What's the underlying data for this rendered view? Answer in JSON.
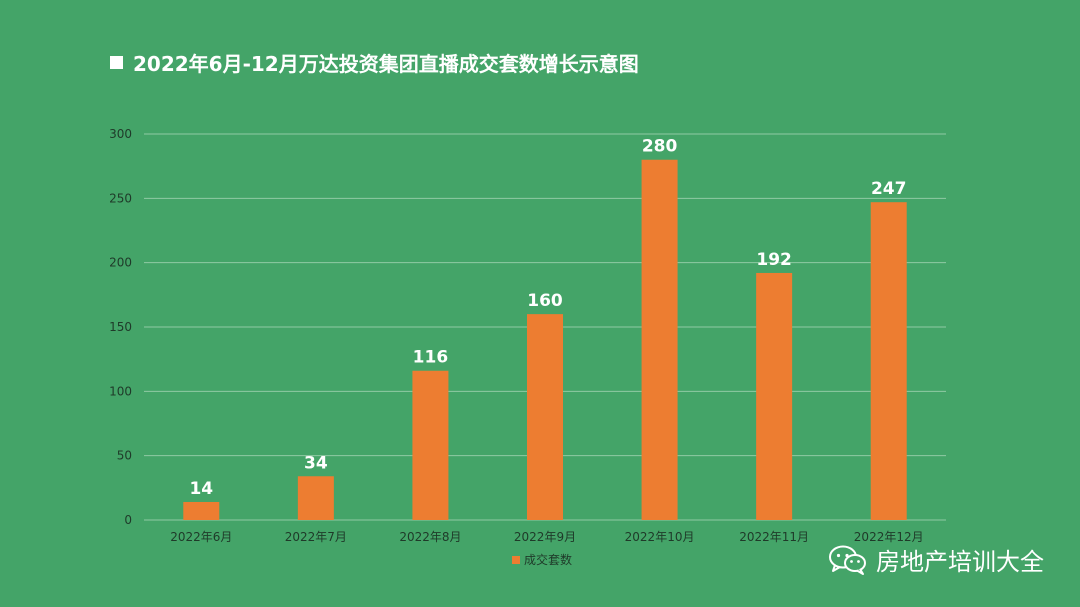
{
  "title_text": "2022年6月-12月万达投资集团直播成交套数增长示意图",
  "watermark_text": "房地产培训大全",
  "watermark_icon": "wechat-icon",
  "colors": {
    "background": "#44a468",
    "bar": "#ed7d31",
    "grid": "#8fcaa3",
    "text": "#ffffff",
    "axis_text": "#1f3a29"
  },
  "chart_data": {
    "type": "bar",
    "title": "2022年6月-12月万达投资集团直播成交套数增长示意图",
    "categories": [
      "2022年6月",
      "2022年7月",
      "2022年8月",
      "2022年9月",
      "2022年10月",
      "2022年11月",
      "2022年12月"
    ],
    "series": [
      {
        "name": "成交套数",
        "values": [
          14,
          34,
          116,
          160,
          280,
          192,
          247
        ]
      }
    ],
    "ylim": [
      0,
      300
    ],
    "yticks": [
      0,
      50,
      100,
      150,
      200,
      250,
      300
    ],
    "data_labels": true,
    "grid": true,
    "legend": "bottom-center"
  }
}
